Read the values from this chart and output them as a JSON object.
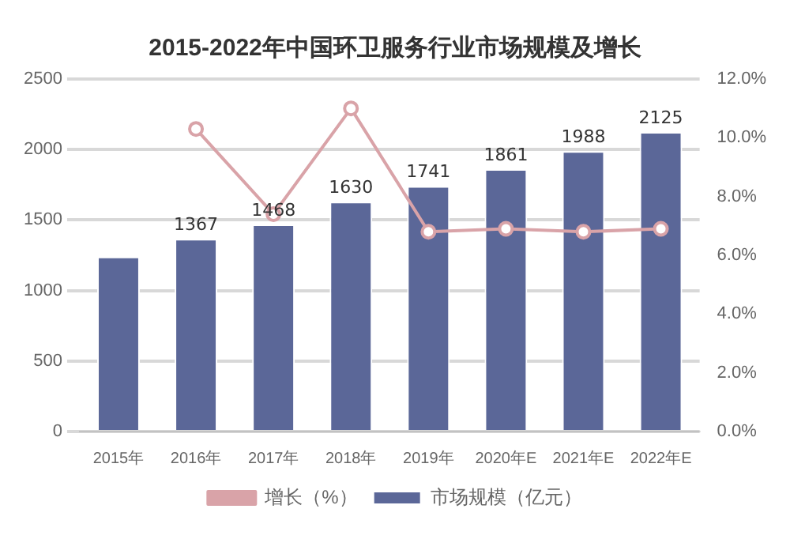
{
  "chart_data": {
    "type": "bar",
    "title": "2015-2022年中国环卫服务行业市场规模及增长",
    "categories": [
      "2015年",
      "2016年",
      "2017年",
      "2018年",
      "2019年",
      "2020年E",
      "2021年E",
      "2022年E"
    ],
    "series": [
      {
        "name": "市场规模（亿元）",
        "color": "#5b6798",
        "values": [
          1240,
          1367,
          1468,
          1630,
          1741,
          1861,
          1988,
          2125
        ],
        "value_labels": [
          null,
          "1367",
          "1468",
          "1630",
          "1741",
          "1861",
          "1988",
          "2125"
        ]
      },
      {
        "name": "增长（%）",
        "type": "line",
        "axis": "y2",
        "color": "#d9a3a8",
        "marker": "circle",
        "values": [
          null,
          10.3,
          7.4,
          11.0,
          6.8,
          6.9,
          6.8,
          6.9
        ]
      }
    ],
    "ylim": [
      0,
      2500
    ],
    "yticks": [
      0,
      500,
      1000,
      1500,
      2000,
      2500
    ],
    "y2lim": [
      0,
      12
    ],
    "y2ticks": [
      {
        "value": 0,
        "label": "0.0%"
      },
      {
        "value": 2,
        "label": "2.0%"
      },
      {
        "value": 4,
        "label": "4.0%"
      },
      {
        "value": 6,
        "label": "6.0%"
      },
      {
        "value": 8,
        "label": "8.0%"
      },
      {
        "value": 10,
        "label": "10.0%"
      },
      {
        "value": 12,
        "label": "12.0%"
      }
    ],
    "grid": "y",
    "legend": "bottom"
  }
}
